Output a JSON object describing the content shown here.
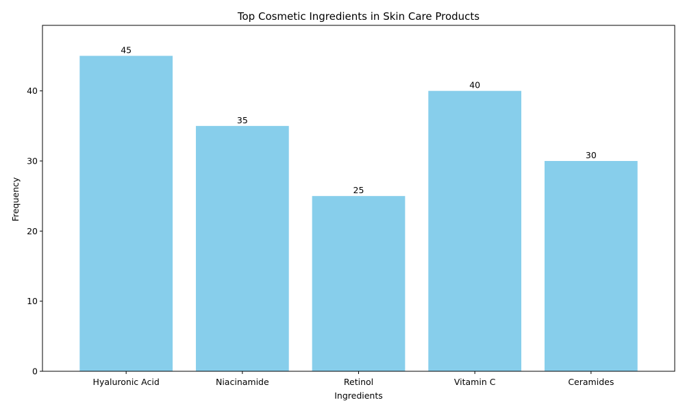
{
  "chart_data": {
    "type": "bar",
    "title": "Top Cosmetic Ingredients in Skin Care Products",
    "xlabel": "Ingredients",
    "ylabel": "Frequency",
    "categories": [
      "Hyaluronic Acid",
      "Niacinamide",
      "Retinol",
      "Vitamin C",
      "Ceramides"
    ],
    "values": [
      45,
      35,
      25,
      40,
      30
    ],
    "ylim": [
      0,
      49.35
    ],
    "yticks": [
      0,
      10,
      20,
      30,
      40
    ],
    "bar_color": "#87ceeb",
    "grid": false,
    "legend": "none"
  }
}
